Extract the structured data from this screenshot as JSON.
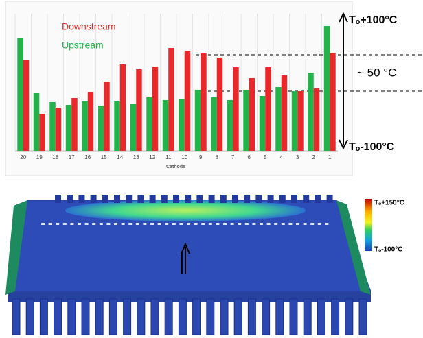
{
  "chart_data": {
    "type": "bar",
    "x_label": "Cathode",
    "categories": [
      "20",
      "19",
      "18",
      "17",
      "16",
      "15",
      "14",
      "13",
      "12",
      "11",
      "10",
      "9",
      "8",
      "7",
      "6",
      "5",
      "4",
      "3",
      "2",
      "1"
    ],
    "series": [
      {
        "name": "Downstream",
        "color": "#e8282a",
        "values": [
          66,
          27,
          31.5,
          38.5,
          43,
          50.5,
          63,
          59.5,
          61.5,
          75,
          73,
          71,
          68,
          61,
          53,
          61,
          55,
          43.5,
          45.5,
          71.5
        ]
      },
      {
        "name": "Upstream",
        "color": "#22b34a",
        "values": [
          82,
          42,
          35.5,
          33.5,
          36,
          33,
          36,
          34,
          39.5,
          37,
          38,
          44.5,
          39,
          37,
          44.5,
          40,
          46.5,
          43.5,
          57,
          91
        ]
      }
    ],
    "ylim": [
      0,
      100
    ],
    "annotations": [
      "Tₒ+100°C",
      "Tₒ-100°C",
      "~ 50 °C"
    ]
  },
  "render": {
    "colorbar_top": "Tₒ+150°C",
    "colorbar_bottom": "Tₒ-100°C"
  }
}
